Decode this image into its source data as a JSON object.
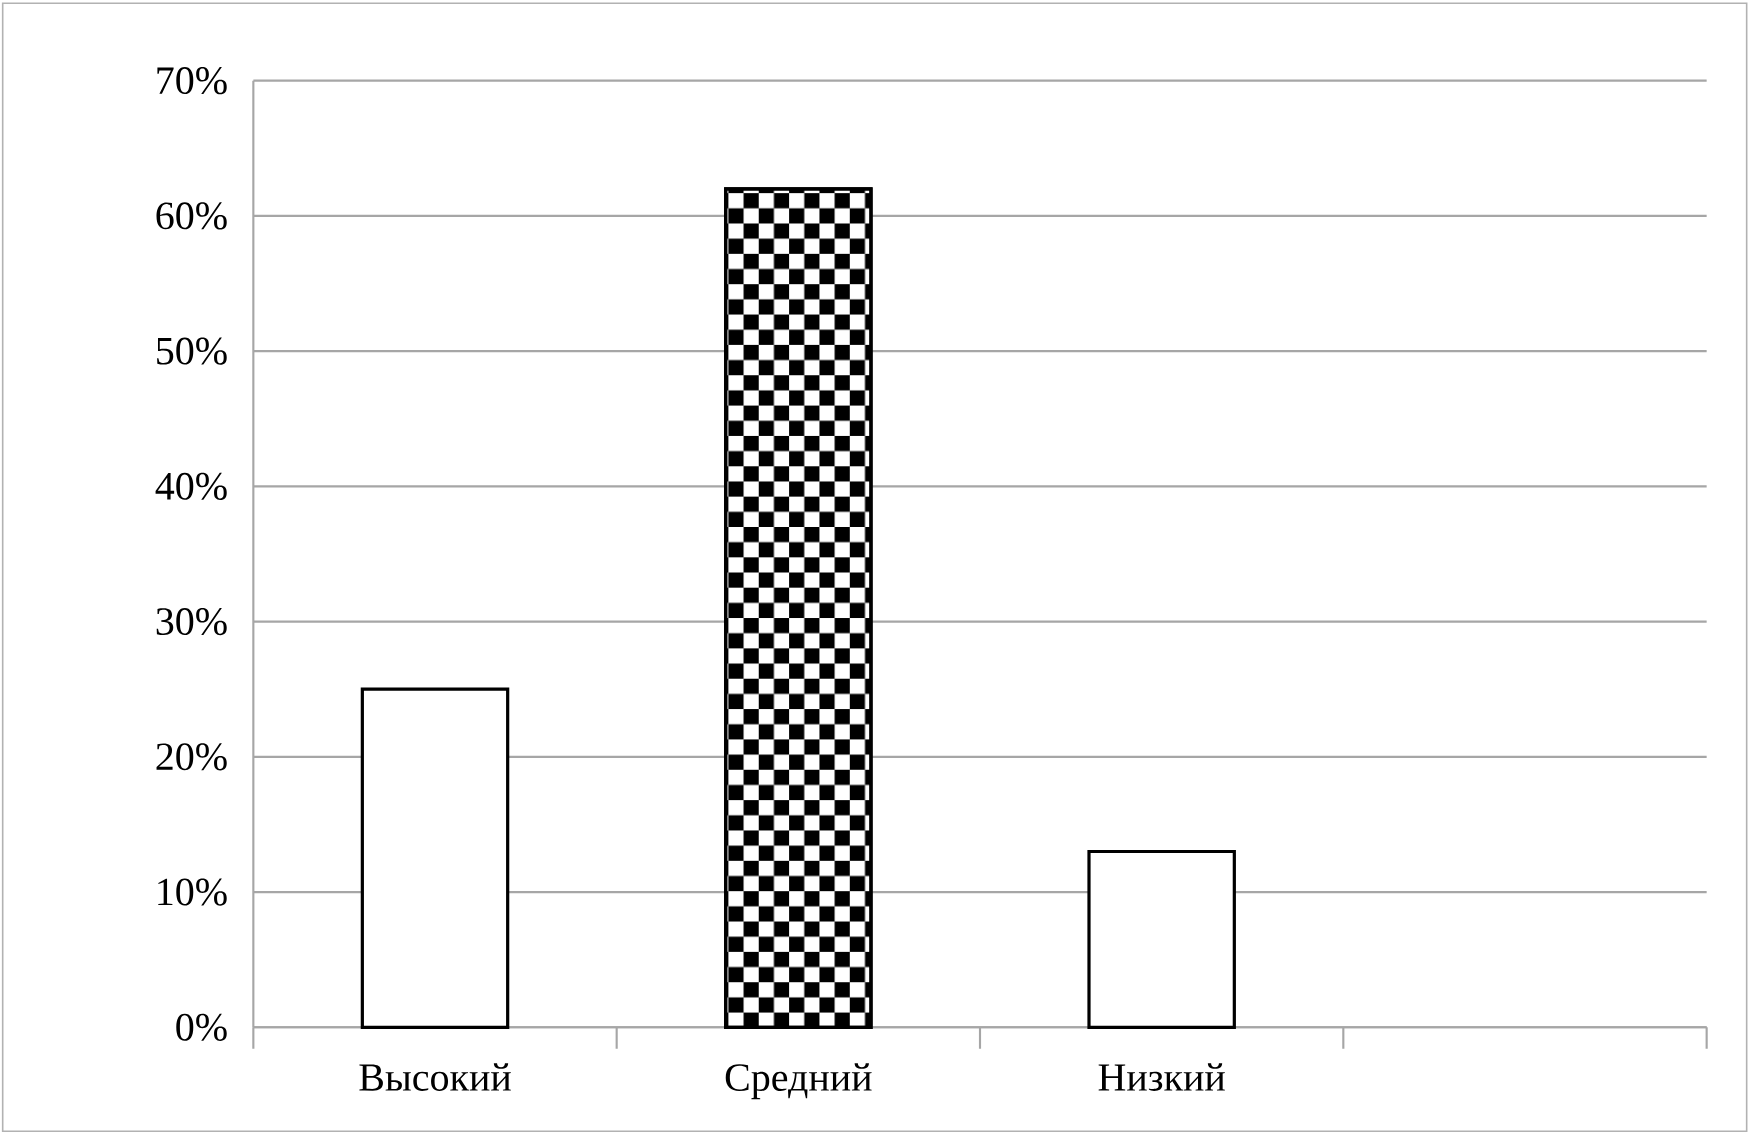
{
  "chart_data": {
    "type": "bar",
    "categories": [
      "Высокий",
      "Средний",
      "Низкий",
      null
    ],
    "values": [
      25,
      62,
      13,
      null
    ],
    "colors": [
      "#000000",
      "#000000",
      "#000000",
      "#000000"
    ],
    "ylim": [
      0,
      70
    ],
    "yticks": [
      {
        "value": 0,
        "label": "0%"
      },
      {
        "value": 10,
        "label": "10%"
      },
      {
        "value": 20,
        "label": "20%"
      },
      {
        "value": 30,
        "label": "30%"
      },
      {
        "value": 40,
        "label": "40%"
      },
      {
        "value": 50,
        "label": "50%"
      },
      {
        "value": 60,
        "label": "60%"
      },
      {
        "value": 70,
        "label": "70%"
      }
    ],
    "grid": "y"
  }
}
